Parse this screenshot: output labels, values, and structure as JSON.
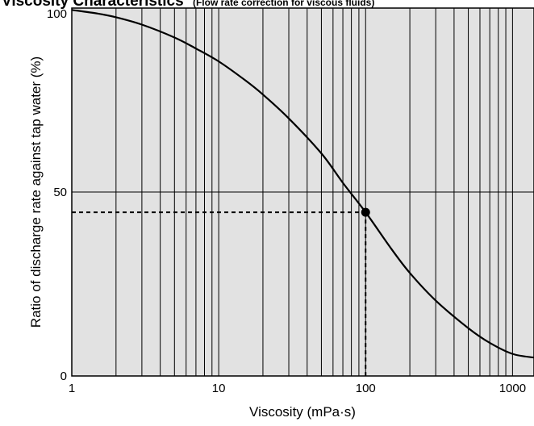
{
  "chart_data": {
    "type": "line",
    "title": "Viscosity Characteristics",
    "subtitle": "(Flow rate correction for viscous fluids)",
    "xlabel": "Viscosity (mPa·s)",
    "ylabel": "Ratio of discharge rate against tap water (%)",
    "x_scale": "log",
    "xlim": [
      1,
      1400
    ],
    "ylim": [
      0,
      100
    ],
    "x_ticks": [
      {
        "value": 1,
        "label": "1"
      },
      {
        "value": 10,
        "label": "10"
      },
      {
        "value": 100,
        "label": "100"
      },
      {
        "value": 1000,
        "label": "1000"
      }
    ],
    "y_ticks": [
      {
        "value": 0,
        "label": "0"
      },
      {
        "value": 50,
        "label": "50"
      },
      {
        "value": 100,
        "label": "100"
      }
    ],
    "grid": "on",
    "background_color": "#e2e2e2",
    "line_color": "#000000",
    "series": [
      {
        "x": [
          1,
          1.5,
          2,
          3,
          5,
          7,
          10,
          15,
          20,
          30,
          50,
          70,
          100,
          150,
          200,
          300,
          500,
          700,
          1000,
          1400
        ],
        "y": [
          99.5,
          98.5,
          97.5,
          95.5,
          92,
          89,
          85.5,
          80.5,
          76.5,
          70,
          60.5,
          52.5,
          44.5,
          34.5,
          28,
          20.5,
          13,
          9,
          6,
          5
        ]
      }
    ],
    "highlight_point": {
      "x": 100,
      "y": 44.5
    }
  }
}
